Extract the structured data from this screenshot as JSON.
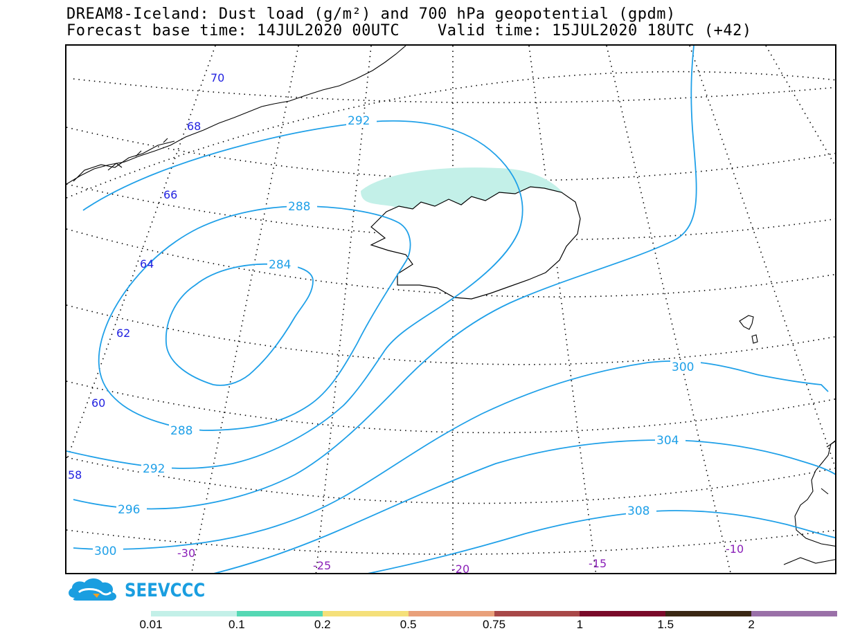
{
  "header": {
    "title_line1": "DREAM8-Iceland: Dust load (g/m²) and 700 hPa geopotential (gpdm)",
    "title_line2": "Forecast base time: 14JUL2020 00UTC    Valid time: 15JUL2020 18UTC (+42)"
  },
  "map": {
    "latitude_labels": [
      "70",
      "68",
      "66",
      "64",
      "62",
      "60",
      "58"
    ],
    "longitude_labels": [
      "-30",
      "-25",
      "-20",
      "-15",
      "-10"
    ],
    "contour_labels": [
      "292",
      "288",
      "284",
      "288",
      "292",
      "296",
      "300",
      "300",
      "304",
      "308"
    ],
    "contour_color": "#1fa0e8",
    "lat_label_color": "#2323e0",
    "lon_label_color": "#8a1fb8",
    "dust_colors": {
      "low": "#c3f0e8",
      "mid": "#55d8b4"
    }
  },
  "logo": {
    "text": "SEEVCCC",
    "color": "#1a9ee0"
  },
  "colorbar": {
    "labels": [
      "0.01",
      "0.1",
      "0.2",
      "0.5",
      "0.75",
      "1",
      "1.5",
      "2"
    ],
    "colors": [
      "#c3f0e8",
      "#55d8b4",
      "#f5e07a",
      "#e9a07a",
      "#a84848",
      "#7a0a2a",
      "#3b2814",
      "#9a70a8"
    ]
  }
}
